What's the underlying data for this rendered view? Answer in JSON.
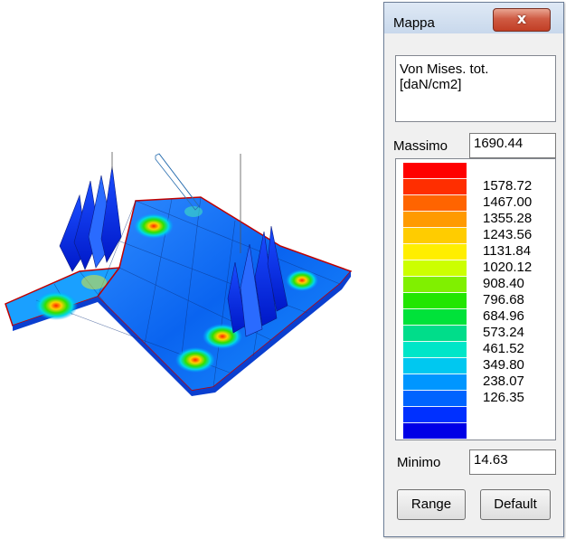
{
  "window": {
    "title": "Mappa",
    "close_glyph": "x"
  },
  "description": {
    "line1": "Von Mises. tot.",
    "line2": "[daN/cm2]"
  },
  "max": {
    "label": "Massimo",
    "value": "1690.44"
  },
  "min": {
    "label": "Minimo",
    "value": "14.63"
  },
  "legend": {
    "colors": [
      "#ff0000",
      "#ff2e00",
      "#ff6400",
      "#ff9a00",
      "#ffcc00",
      "#ffee00",
      "#ccff00",
      "#80f000",
      "#22e600",
      "#00e23a",
      "#00dd8a",
      "#00e6c8",
      "#00c8f0",
      "#0096ff",
      "#0064ff",
      "#0030ff",
      "#0000e6"
    ],
    "ticks": [
      "1578.72",
      "1467.00",
      "1355.28",
      "1243.56",
      "1131.84",
      "1020.12",
      "908.40",
      "796.68",
      "684.96",
      "573.24",
      "461.52",
      "349.80",
      "238.07",
      "126.35"
    ]
  },
  "buttons": {
    "range": "Range",
    "default": "Default"
  }
}
